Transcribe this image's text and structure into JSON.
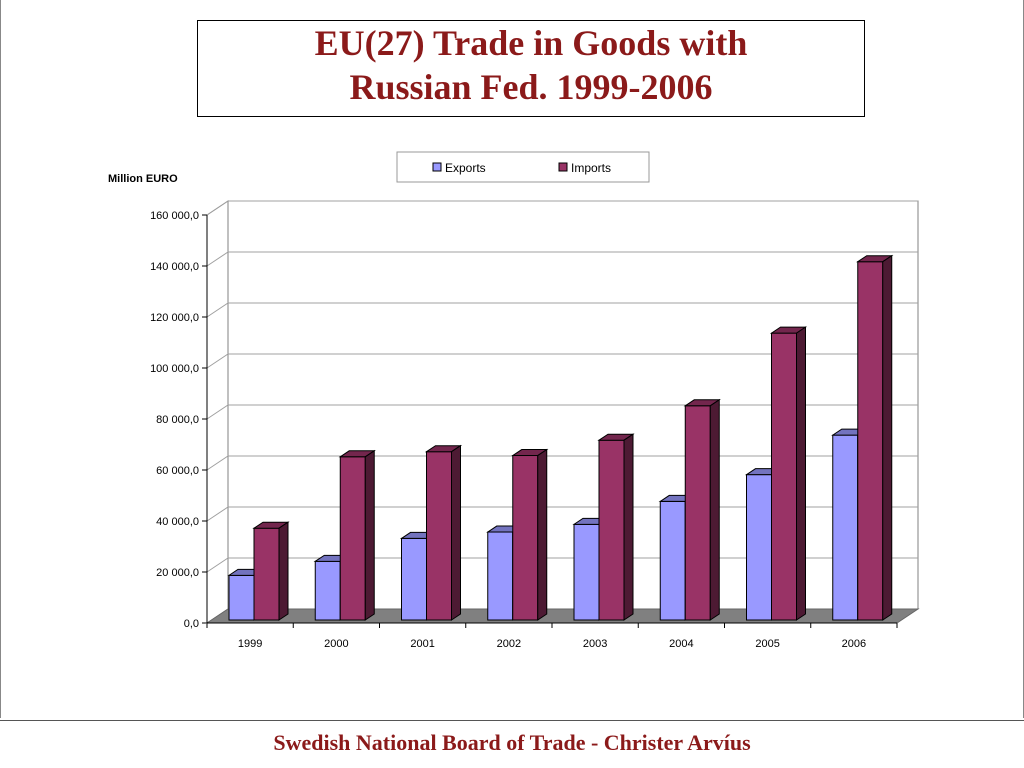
{
  "title_lines": [
    "EU(27) Trade in Goods with",
    "Russian Fed. 1999-2006"
  ],
  "footer": "Swedish National Board of Trade - Christer Arvíus",
  "colors": {
    "title": "#8b1a1a",
    "exports": "#9999ff",
    "imports": "#993366",
    "floor": "#808080"
  },
  "chart_data": {
    "type": "bar",
    "title": "EU(27) Trade in Goods with Russian Fed. 1999-2006",
    "ylabel": "Million EURO",
    "xlabel": "",
    "categories": [
      "1999",
      "2000",
      "2001",
      "2002",
      "2003",
      "2004",
      "2005",
      "2006"
    ],
    "series": [
      {
        "name": "Exports",
        "values": [
          17500,
          23000,
          32000,
          34500,
          37500,
          46500,
          57000,
          72500
        ]
      },
      {
        "name": "Imports",
        "values": [
          36000,
          64000,
          66000,
          64500,
          70500,
          84000,
          112500,
          140500
        ]
      }
    ],
    "ylim": [
      0,
      160000
    ],
    "yticks": [
      "0,0",
      "20 000,0",
      "40 000,0",
      "60 000,0",
      "80 000,0",
      "100 000,0",
      "120 000,0",
      "140 000,0",
      "160 000,0"
    ],
    "grid": true,
    "legend_position": "top",
    "style": "3d-clustered-column"
  }
}
